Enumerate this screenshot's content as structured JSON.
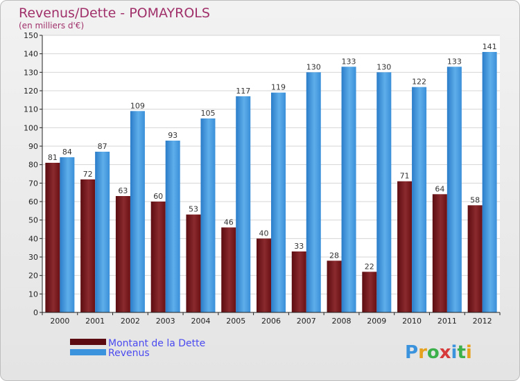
{
  "chart_data": {
    "type": "bar",
    "title": "Revenus/Dette - POMAYROLS",
    "subtitle": "(en milliers d'€)",
    "categories": [
      "2000",
      "2001",
      "2002",
      "2003",
      "2004",
      "2005",
      "2006",
      "2007",
      "2008",
      "2009",
      "2010",
      "2011",
      "2012"
    ],
    "series": [
      {
        "name": "Montant de la Dette",
        "color": "#7a1418",
        "values": [
          81,
          72,
          63,
          60,
          53,
          46,
          40,
          33,
          28,
          22,
          71,
          64,
          58
        ]
      },
      {
        "name": "Revenus",
        "color": "#3a93dc",
        "values": [
          84,
          87,
          109,
          93,
          105,
          117,
          119,
          130,
          133,
          130,
          122,
          133,
          141
        ]
      }
    ],
    "ylim": [
      0,
      150
    ],
    "ytick_step": 10,
    "grid": true,
    "legend": "bottom-left"
  },
  "logo": {
    "letters": [
      "P",
      "r",
      "o",
      "x",
      "i",
      "t",
      "i"
    ]
  }
}
